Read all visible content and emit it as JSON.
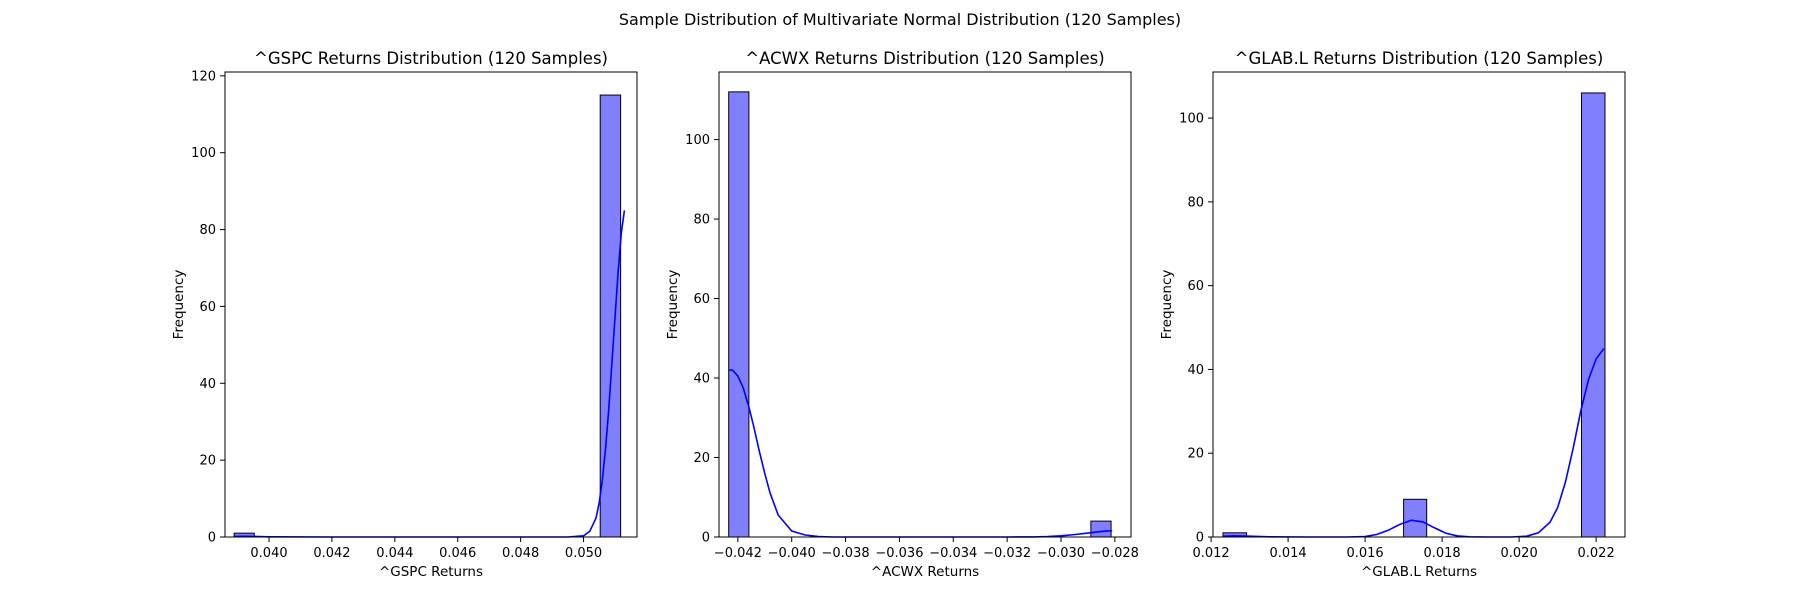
{
  "figure": {
    "suptitle": "Sample Distribution of Multivariate Normal Distribution (120 Samples)"
  },
  "colors": {
    "bar_fill": "#8080ff",
    "bar_edge": "#000000",
    "kde_line": "#0000ff",
    "axes_edge": "#000000"
  },
  "chart_data": [
    {
      "type": "bar",
      "subtype": "histogram_with_kde",
      "title": "^GSPC Returns Distribution (120 Samples)",
      "xlabel": "^GSPC Returns",
      "ylabel": "Frequency",
      "xlim": [
        0.0386,
        0.0517
      ],
      "ylim": [
        0,
        121
      ],
      "xticks": [
        0.04,
        0.042,
        0.044,
        0.046,
        0.048,
        0.05
      ],
      "xtick_labels": [
        "0.040",
        "0.042",
        "0.044",
        "0.046",
        "0.048",
        "0.050"
      ],
      "yticks": [
        0,
        20,
        40,
        60,
        80,
        100,
        120
      ],
      "ytick_labels": [
        "0",
        "20",
        "40",
        "60",
        "80",
        "100",
        "120"
      ],
      "bins": [
        {
          "x0": 0.03889,
          "x1": 0.03953,
          "count": 1
        },
        {
          "x0": 0.05053,
          "x1": 0.05118,
          "count": 115
        }
      ],
      "kde": {
        "x": [
          0.0389,
          0.0392,
          0.0395,
          0.04,
          0.042,
          0.044,
          0.046,
          0.048,
          0.0495,
          0.05,
          0.0502,
          0.0504,
          0.0505,
          0.0506,
          0.0507,
          0.0508,
          0.0509,
          0.051,
          0.0511,
          0.0512,
          0.0513
        ],
        "y": [
          0.15,
          0.17,
          0.15,
          0.05,
          0.0,
          0.0,
          0.0,
          0.0,
          0.0,
          0.3,
          1.5,
          5,
          9,
          15,
          23,
          33,
          45,
          57,
          69,
          79,
          85
        ]
      }
    },
    {
      "type": "bar",
      "subtype": "histogram_with_kde",
      "title": "^ACWX Returns Distribution (120 Samples)",
      "xlabel": "^ACWX Returns",
      "ylabel": "Frequency",
      "xlim": [
        -0.0427,
        -0.0274
      ],
      "ylim": [
        0,
        117
      ],
      "xticks": [
        -0.042,
        -0.04,
        -0.038,
        -0.036,
        -0.034,
        -0.032,
        -0.03,
        -0.028
      ],
      "xtick_labels": [
        "−0.042",
        "−0.040",
        "−0.038",
        "−0.036",
        "−0.034",
        "−0.032",
        "−0.030",
        "−0.028"
      ],
      "yticks": [
        0,
        20,
        40,
        60,
        80,
        100
      ],
      "ytick_labels": [
        "0",
        "20",
        "40",
        "60",
        "80",
        "100"
      ],
      "bins": [
        {
          "x0": -0.04234,
          "x1": -0.04159,
          "count": 112
        },
        {
          "x0": -0.02889,
          "x1": -0.02814,
          "count": 4
        }
      ],
      "kde": {
        "x": [
          -0.04234,
          -0.0422,
          -0.042,
          -0.0418,
          -0.0416,
          -0.0414,
          -0.0412,
          -0.041,
          -0.0408,
          -0.0405,
          -0.04,
          -0.0395,
          -0.039,
          -0.0385,
          -0.038,
          -0.036,
          -0.034,
          -0.032,
          -0.031,
          -0.0305,
          -0.03,
          -0.0295,
          -0.029,
          -0.0285,
          -0.0281
        ],
        "y": [
          42,
          42,
          40.5,
          37.5,
          33,
          27.5,
          21.5,
          16,
          11,
          5.5,
          1.5,
          0.5,
          0.1,
          0.0,
          0.0,
          0.0,
          0.0,
          0.0,
          0.02,
          0.1,
          0.3,
          0.6,
          1.0,
          1.4,
          1.6
        ]
      }
    },
    {
      "type": "bar",
      "subtype": "histogram_with_kde",
      "title": "^GLAB.L Returns Distribution (120 Samples)",
      "xlabel": "^GLAB.L Returns",
      "ylabel": "Frequency",
      "xlim": [
        0.01205,
        0.02275
      ],
      "ylim": [
        0,
        111
      ],
      "xticks": [
        0.012,
        0.014,
        0.016,
        0.018,
        0.02,
        0.022
      ],
      "xtick_labels": [
        "0.012",
        "0.014",
        "0.016",
        "0.018",
        "0.020",
        "0.022"
      ],
      "yticks": [
        0,
        20,
        40,
        60,
        80,
        100
      ],
      "ytick_labels": [
        "0",
        "20",
        "40",
        "60",
        "80",
        "100"
      ],
      "bins": [
        {
          "x0": 0.01231,
          "x1": 0.01292,
          "count": 1
        },
        {
          "x0": 0.017,
          "x1": 0.0176,
          "count": 9
        },
        {
          "x0": 0.02162,
          "x1": 0.02223,
          "count": 106
        }
      ],
      "kde": {
        "x": [
          0.01231,
          0.0126,
          0.013,
          0.0135,
          0.0145,
          0.0155,
          0.016,
          0.0163,
          0.0166,
          0.0169,
          0.0172,
          0.0175,
          0.0178,
          0.0181,
          0.0184,
          0.0187,
          0.0192,
          0.0198,
          0.0202,
          0.0205,
          0.0208,
          0.021,
          0.0212,
          0.0214,
          0.0216,
          0.0218,
          0.022,
          0.0222
        ],
        "y": [
          0.2,
          0.3,
          0.2,
          0.05,
          0.0,
          0.0,
          0.1,
          0.6,
          1.6,
          3.0,
          4.0,
          3.6,
          2.2,
          0.9,
          0.25,
          0.05,
          0.0,
          0.0,
          0.2,
          1.0,
          3.5,
          7,
          13,
          21,
          30,
          37.5,
          42.5,
          45
        ]
      }
    }
  ]
}
